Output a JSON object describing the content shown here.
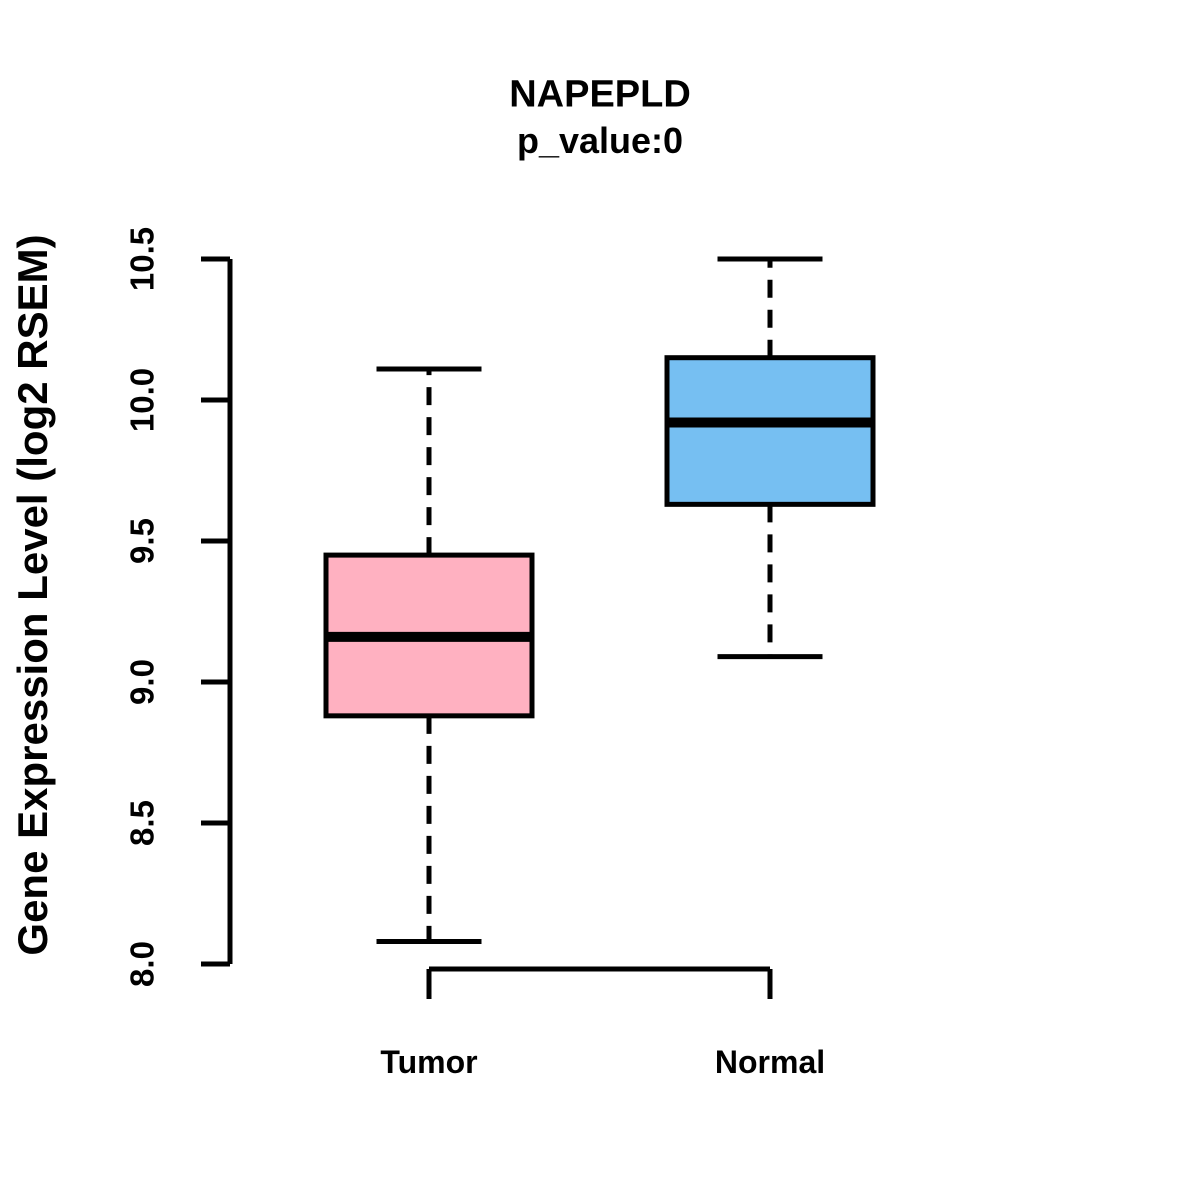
{
  "figure": {
    "title": "NAPEPLD",
    "subtitle": "p_value:0",
    "ylabel": "Gene Expression Level (log2 RSEM)"
  },
  "chart_data": {
    "type": "boxplot",
    "title": "NAPEPLD",
    "subtitle": "p_value:0",
    "xlabel": "",
    "ylabel": "Gene Expression Level (log2 RSEM)",
    "categories": [
      "Tumor",
      "Normal"
    ],
    "ylim": [
      8.0,
      10.5
    ],
    "yticks": [
      8.0,
      8.5,
      9.0,
      9.5,
      10.0,
      10.5
    ],
    "ytick_labels": [
      "8.0",
      "8.5",
      "9.0",
      "9.5",
      "10.0",
      "10.5"
    ],
    "grid": false,
    "legend": "none",
    "series": [
      {
        "name": "Tumor",
        "box_fill": "#FFB1C1",
        "whisker_low": 8.08,
        "q1": 8.88,
        "median": 9.16,
        "q3": 9.45,
        "whisker_high": 10.11
      },
      {
        "name": "Normal",
        "box_fill": "#76BFF2",
        "whisker_low": 9.09,
        "q1": 9.63,
        "median": 9.92,
        "q3": 10.15,
        "whisker_high": 10.5
      }
    ],
    "colors": {
      "box_border": "#000000",
      "median": "#000000",
      "whisker": "#000000",
      "axis": "#000000",
      "text": "#000000",
      "background": "#FFFFFF"
    }
  }
}
